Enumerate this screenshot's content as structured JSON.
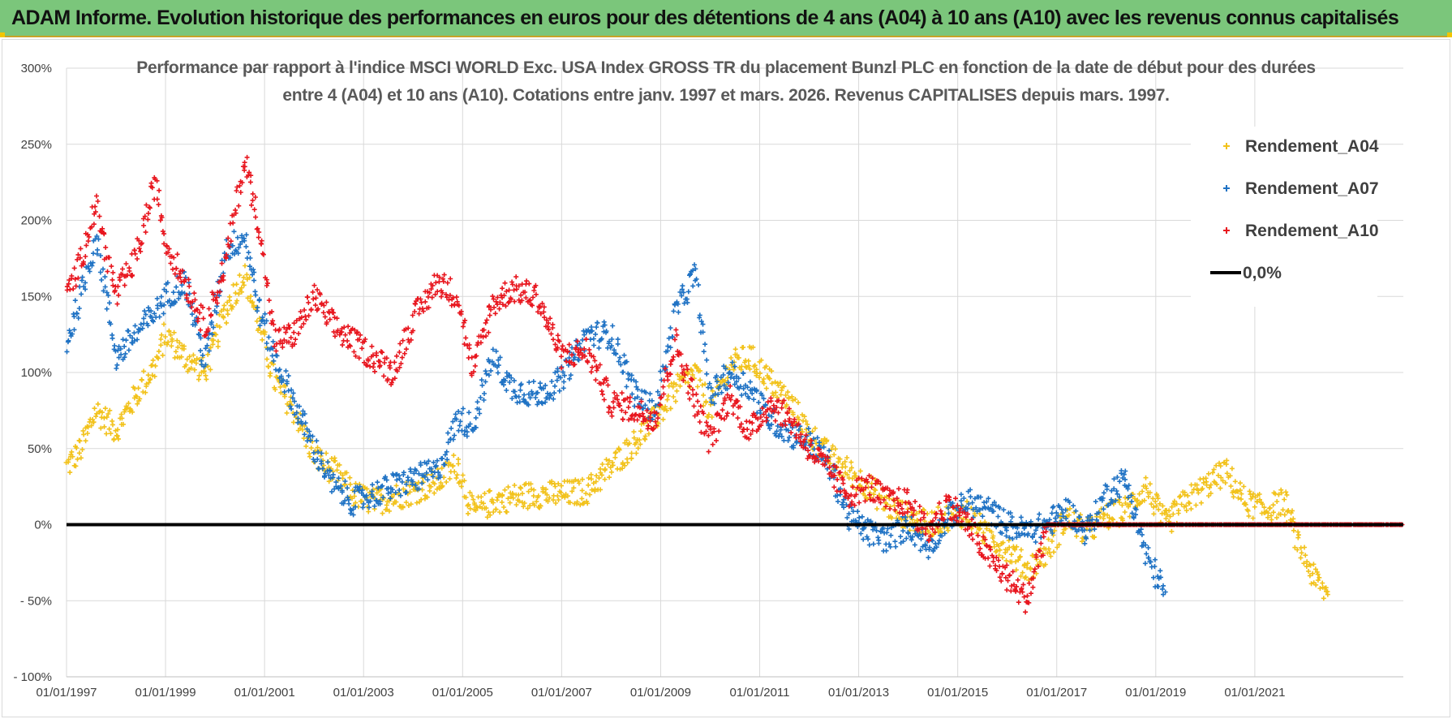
{
  "banner": {
    "title": "ADAM Informe. Evolution historique des performances en euros pour des détentions de 4 ans (A04) à 10 ans (A10) avec les revenus connus capitalisés"
  },
  "chart_data": {
    "type": "scatter",
    "title_line1": "Performance par rapport à l'indice MSCI WORLD Exc. USA Index GROSS TR  du placement Bunzl PLC en fonction de la date de début pour des durées",
    "title_line2": "entre 4 (A04) et 10 ans (A10).  Cotations entre janv. 1997 et mars. 2026.  Revenus CAPITALISES depuis mars. 1997.",
    "xlabel": "",
    "ylabel": "",
    "x_range": [
      1997.0,
      2024.0
    ],
    "ylim": [
      -100,
      300
    ],
    "y_ticks": [
      -100,
      -50,
      0,
      50,
      100,
      150,
      200,
      250,
      300
    ],
    "y_tick_labels": [
      "- 100%",
      "- 50%",
      "0%",
      "50%",
      "100%",
      "150%",
      "200%",
      "250%",
      "300%"
    ],
    "x_ticks": [
      1997,
      1999,
      2001,
      2003,
      2005,
      2007,
      2009,
      2011,
      2013,
      2015,
      2017,
      2019,
      2021
    ],
    "x_tick_labels": [
      "01/01/1997",
      "01/01/1999",
      "01/01/2001",
      "01/01/2003",
      "01/01/2005",
      "01/01/2007",
      "01/01/2009",
      "01/01/2011",
      "01/01/2013",
      "01/01/2015",
      "01/01/2017",
      "01/01/2019",
      "01/01/2021"
    ],
    "grid": true,
    "legend_position": "top-right",
    "series": [
      {
        "name": "Rendement_A04",
        "color": "#f2c21b",
        "marker": "plus",
        "x": [
          1997.0,
          1997.3,
          1997.6,
          1998.0,
          1998.4,
          1998.8,
          1999.0,
          1999.4,
          1999.8,
          2000.2,
          2000.6,
          2000.9,
          2001.2,
          2001.6,
          2002.0,
          2002.4,
          2002.8,
          2003.2,
          2003.6,
          2004.0,
          2004.5,
          2004.9,
          2005.2,
          2005.6,
          2006.0,
          2006.5,
          2007.0,
          2007.5,
          2008.0,
          2008.5,
          2008.9,
          2009.3,
          2009.7,
          2010.0,
          2010.4,
          2010.8,
          2011.2,
          2011.6,
          2012.0,
          2012.4,
          2012.8,
          2013.2,
          2013.6,
          2014.0,
          2014.4,
          2014.8,
          2015.2,
          2015.6,
          2016.0,
          2016.4,
          2016.8,
          2017.2,
          2017.6,
          2018.0,
          2018.4,
          2018.8,
          2019.2,
          2019.6,
          2020.0,
          2020.4,
          2020.8,
          2021.2,
          2021.6,
          2021.9,
          2022.2,
          2022.5
        ],
        "values": [
          38,
          50,
          75,
          62,
          85,
          105,
          125,
          110,
          100,
          140,
          165,
          130,
          95,
          75,
          45,
          35,
          20,
          15,
          18,
          22,
          28,
          40,
          8,
          15,
          18,
          20,
          20,
          22,
          38,
          55,
          70,
          88,
          100,
          75,
          105,
          110,
          95,
          80,
          60,
          45,
          35,
          25,
          12,
          5,
          0,
          5,
          8,
          -8,
          -15,
          -30,
          -18,
          5,
          -5,
          5,
          10,
          25,
          0,
          15,
          25,
          35,
          15,
          10,
          15,
          -15,
          -35,
          -48
        ]
      },
      {
        "name": "Rendement_A07",
        "color": "#1f72c4",
        "marker": "plus",
        "x": [
          1997.0,
          1997.3,
          1997.6,
          1998.0,
          1998.4,
          1998.8,
          1999.0,
          1999.4,
          1999.8,
          2000.2,
          2000.6,
          2000.9,
          2001.2,
          2001.6,
          2002.0,
          2002.4,
          2002.8,
          2003.2,
          2003.6,
          2004.0,
          2004.5,
          2004.9,
          2005.2,
          2005.6,
          2006.0,
          2006.5,
          2007.0,
          2007.5,
          2008.0,
          2008.5,
          2008.9,
          2009.3,
          2009.7,
          2010.0,
          2010.4,
          2010.8,
          2011.2,
          2011.6,
          2012.0,
          2012.4,
          2012.8,
          2013.2,
          2013.6,
          2014.0,
          2014.4,
          2014.8,
          2015.2,
          2015.6,
          2016.0,
          2016.4,
          2016.8,
          2017.2,
          2017.6,
          2018.0,
          2018.4,
          2018.8,
          2019.2
        ],
        "values": [
          120,
          150,
          190,
          110,
          125,
          140,
          150,
          160,
          105,
          180,
          190,
          140,
          110,
          80,
          50,
          25,
          15,
          20,
          25,
          30,
          35,
          70,
          65,
          110,
          90,
          85,
          95,
          125,
          125,
          85,
          75,
          140,
          165,
          85,
          100,
          90,
          70,
          60,
          55,
          40,
          5,
          -5,
          -10,
          0,
          -15,
          5,
          15,
          10,
          0,
          -5,
          0,
          10,
          -5,
          20,
          30,
          -20,
          -45
        ]
      },
      {
        "name": "Rendement_A10",
        "color": "#e8161e",
        "marker": "plus",
        "x": [
          1997.0,
          1997.3,
          1997.6,
          1998.0,
          1998.4,
          1998.8,
          1999.0,
          1999.4,
          1999.8,
          2000.2,
          2000.6,
          2000.9,
          2001.2,
          2001.6,
          2002.0,
          2002.4,
          2002.8,
          2003.2,
          2003.6,
          2004.0,
          2004.5,
          2004.9,
          2005.2,
          2005.6,
          2006.0,
          2006.5,
          2007.0,
          2007.5,
          2008.0,
          2008.5,
          2008.9,
          2009.3,
          2009.7,
          2010.0,
          2010.4,
          2010.8,
          2011.2,
          2011.6,
          2012.0,
          2012.4,
          2012.8,
          2013.2,
          2013.6,
          2014.0,
          2014.4,
          2014.8,
          2015.2,
          2015.6,
          2016.0,
          2016.4,
          2016.8,
          2017.2,
          2017.6,
          2018.0,
          2018.4,
          2018.8,
          2019.2,
          2019.6,
          2020.0,
          2020.4,
          2020.8,
          2021.2,
          2021.6,
          2022.0,
          2022.4,
          2022.8,
          2023.2,
          2023.6,
          2024.0
        ],
        "values": [
          150,
          175,
          210,
          150,
          175,
          225,
          185,
          160,
          130,
          170,
          240,
          195,
          120,
          125,
          150,
          130,
          120,
          110,
          100,
          135,
          160,
          150,
          100,
          145,
          155,
          150,
          110,
          115,
          80,
          75,
          70,
          120,
          80,
          55,
          85,
          60,
          80,
          70,
          50,
          35,
          20,
          25,
          15,
          15,
          -5,
          15,
          0,
          -20,
          -35,
          -50,
          0,
          0,
          0,
          0,
          0,
          0,
          0,
          0,
          0,
          0,
          0,
          0,
          0,
          0,
          0,
          0,
          0,
          0,
          0
        ]
      },
      {
        "name": "0,0%",
        "color": "#000000",
        "marker": "line",
        "x": [
          1997.0,
          2024.0
        ],
        "values": [
          0,
          0
        ]
      }
    ]
  }
}
